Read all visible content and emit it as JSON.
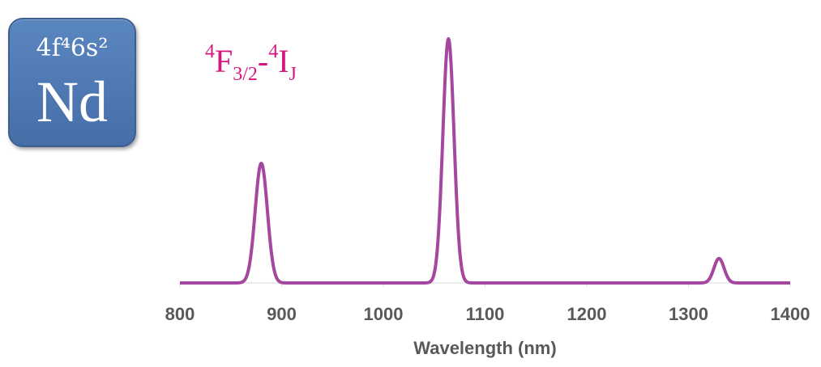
{
  "element": {
    "configuration": "4f⁴ 6s²",
    "configuration_display": "4f⁴6s²",
    "symbol": "Nd"
  },
  "transition_label": {
    "upper_sup": "4",
    "upper_term": "F",
    "upper_sub": "3/2",
    "separator": "-",
    "lower_sup": "4",
    "lower_term": "I",
    "lower_sub": "J"
  },
  "colors": {
    "curve": "#a3479f",
    "transition_text": "#d4167e",
    "tile": "#4f79b4",
    "axis_text": "#595959"
  },
  "chart_data": {
    "type": "line",
    "title": "",
    "xlabel": "Wavelength (nm)",
    "ylabel": "",
    "xlim": [
      800,
      1400
    ],
    "ylim": [
      0,
      1
    ],
    "x_ticks": [
      800,
      900,
      1000,
      1100,
      1200,
      1300,
      1400
    ],
    "grid": false,
    "series": [
      {
        "name": "",
        "peaks": [
          {
            "center": 880,
            "height": 0.49,
            "width": 6
          },
          {
            "center": 1064,
            "height": 1.0,
            "width": 5.5
          },
          {
            "center": 1330,
            "height": 0.1,
            "width": 5
          }
        ]
      }
    ]
  }
}
